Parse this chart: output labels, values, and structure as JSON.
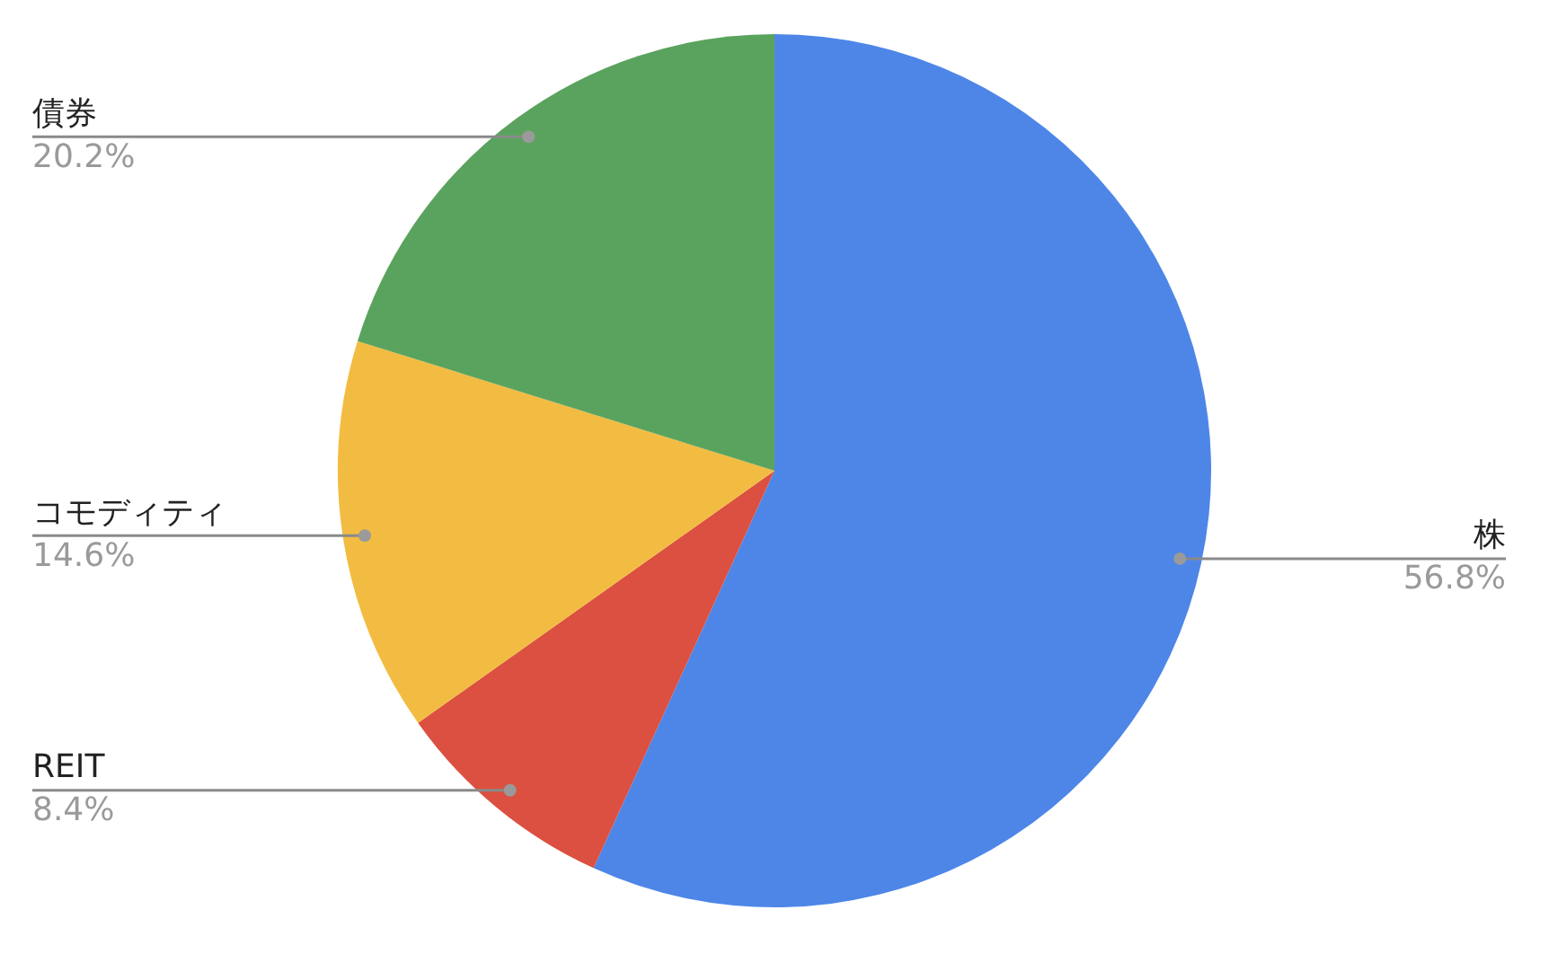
{
  "chart_data": {
    "type": "pie",
    "categories": [
      "株",
      "REIT",
      "コモディティ",
      "債券"
    ],
    "values": [
      56.8,
      8.4,
      14.6,
      20.2
    ],
    "colors": [
      "#4e86e8",
      "#db5040",
      "#f2bc42",
      "#5aa35e"
    ],
    "value_labels": [
      "56.8%",
      "8.4%",
      "14.6%",
      "20.2%"
    ],
    "legend": false
  }
}
